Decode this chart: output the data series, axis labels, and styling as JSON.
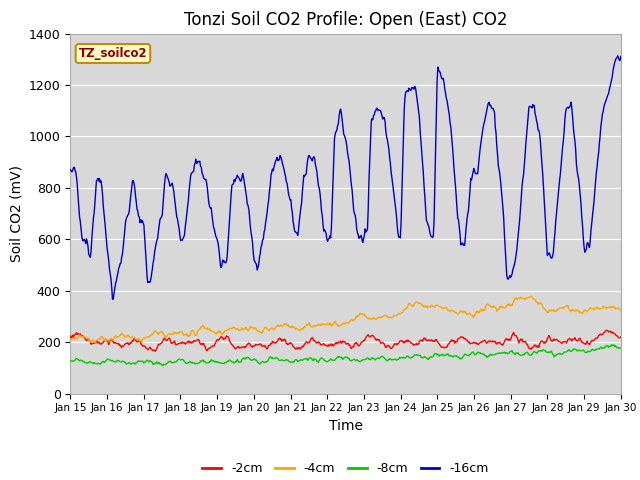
{
  "title": "Tonzi Soil CO2 Profile: Open (East) CO2",
  "ylabel": "Soil CO2 (mV)",
  "xlabel": "Time",
  "legend_label": "TZ_soilco2",
  "series_labels": [
    "-2cm",
    "-4cm",
    "-8cm",
    "-16cm"
  ],
  "series_colors": [
    "#ff0000",
    "#ffa500",
    "#00cc00",
    "#0000cc"
  ],
  "ylim": [
    0,
    1400
  ],
  "bg_color": "#d8d8d8",
  "title_fontsize": 12,
  "axis_label_fontsize": 10,
  "x_tick_labels": [
    "Jan 15",
    "Jan 16",
    "Jan 17",
    "Jan 18",
    "Jan 19",
    "Jan 20",
    "Jan 21",
    "Jan 22",
    "Jan 23",
    "Jan 24",
    "Jan 25",
    "Jan 26",
    "Jan 27",
    "Jan 28",
    "Jan 29",
    "Jan 30"
  ],
  "yticks": [
    0,
    200,
    400,
    600,
    800,
    1000,
    1200,
    1400
  ]
}
